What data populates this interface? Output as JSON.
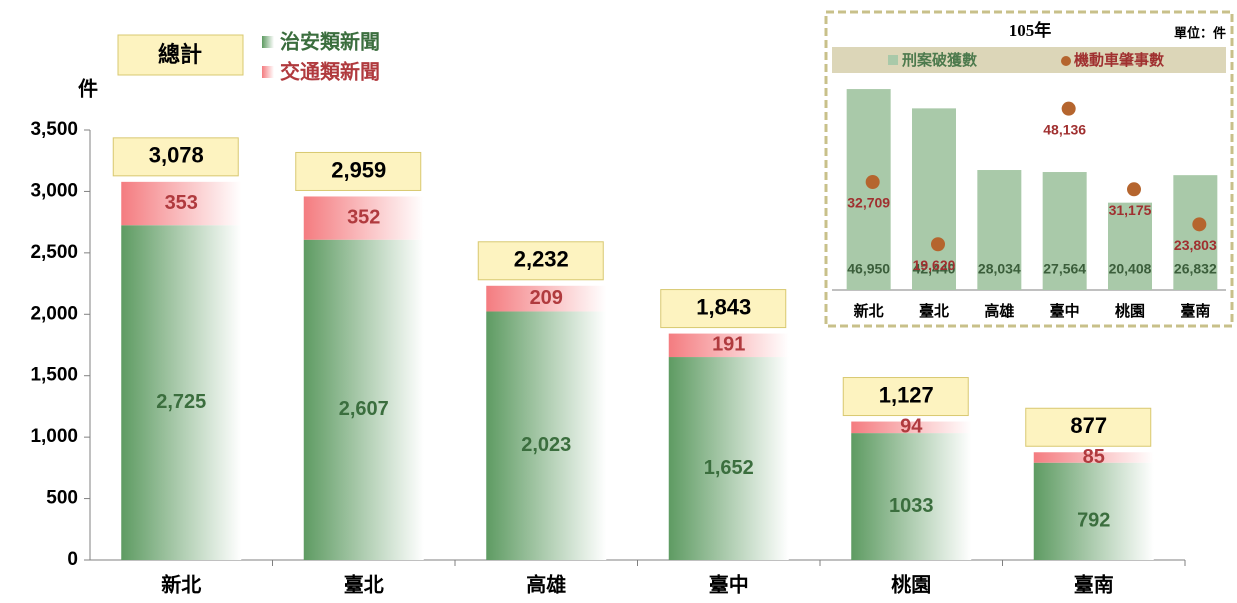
{
  "chart_data": [
    {
      "type": "stacked_bar",
      "y_label": "件",
      "total_name": "總計",
      "categories": [
        "新北",
        "臺北",
        "高雄",
        "臺中",
        "桃園",
        "臺南"
      ],
      "series": [
        {
          "name": "治安類新聞",
          "color": "#5e9b62",
          "values": [
            2725,
            2607,
            2023,
            1652,
            1033,
            792
          ],
          "value_labels": [
            "2,725",
            "2,607",
            "2,023",
            "1,652",
            "1033",
            "792"
          ]
        },
        {
          "name": "交通類新聞",
          "color": "#f47c80",
          "values": [
            353,
            352,
            209,
            191,
            94,
            85
          ]
        }
      ],
      "totals": [
        3078,
        2959,
        2232,
        1843,
        1127,
        877
      ],
      "total_labels": [
        "3,078",
        "2,959",
        "2,232",
        "1,843",
        "1,127",
        "877"
      ],
      "ylim": [
        0,
        3500
      ],
      "yticks": [
        0,
        500,
        {
          "value": 1000,
          "label": "1,000"
        },
        {
          "value": 1500,
          "label": "1,500"
        },
        {
          "value": 2000,
          "label": "2,000"
        },
        {
          "value": 2500,
          "label": "2,500"
        },
        {
          "value": 3000,
          "label": "3,000"
        },
        {
          "value": 3500,
          "label": "3,500"
        }
      ]
    },
    {
      "type": "bar_dot",
      "title": "105年",
      "unit": "單位：件",
      "categories": [
        "新北",
        "臺北",
        "高雄",
        "臺中",
        "桃園",
        "臺南"
      ],
      "series": [
        {
          "name": "刑案破獲數",
          "color": "#a9c9a9",
          "values": [
            46950,
            42440,
            28034,
            27564,
            20408,
            26832
          ],
          "value_labels": [
            "46,950",
            "42,440",
            "28,034",
            "27,564",
            "20,408",
            "26,832"
          ]
        },
        {
          "name": "機動車肇事數",
          "color": "#b5652e",
          "axis": "y2",
          "values": [
            32709,
            19620,
            null,
            48136,
            31175,
            23803
          ],
          "value_labels": [
            "32,709",
            "19,620",
            null,
            "48,136",
            "31,175",
            "23,803"
          ]
        }
      ],
      "ylim": [
        0,
        50000
      ],
      "y2lim": [
        10000,
        55000
      ]
    }
  ]
}
